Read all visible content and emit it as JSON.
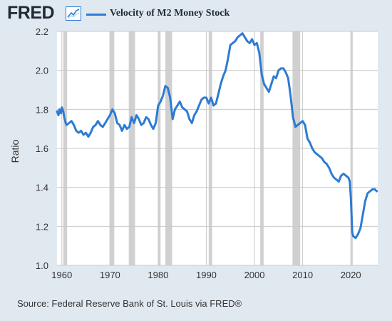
{
  "header": {
    "logo_text": "FRED",
    "logo_icon": "fred-line-graph-icon"
  },
  "colors": {
    "background": "#e1e9f0",
    "plot_background": "#ffffff",
    "series": "#2d7bd3",
    "recession": "#d0d0d0",
    "grid": "#c9c9c9"
  },
  "footer": {
    "source": "Source: Federal Reserve Bank of St. Louis via FRED®"
  },
  "chart_data": {
    "type": "line",
    "title": "",
    "xlabel": "",
    "ylabel": "Ratio",
    "xlim": [
      1959.0,
      2025.6
    ],
    "ylim": [
      1.0,
      2.2
    ],
    "x_ticks": [
      1960,
      1970,
      1980,
      1990,
      2000,
      2010,
      2020
    ],
    "y_ticks": [
      1.0,
      1.2,
      1.4,
      1.6,
      1.8,
      2.0,
      2.2
    ],
    "y_tick_labels": [
      "1.0",
      "1.2",
      "1.4",
      "1.6",
      "1.8",
      "2.0",
      "2.2"
    ],
    "grid": true,
    "legend": "top-left",
    "recessions": [
      [
        1960.3,
        1961.1
      ],
      [
        1969.9,
        1970.9
      ],
      [
        1973.9,
        1975.2
      ],
      [
        1980.0,
        1980.5
      ],
      [
        1981.5,
        1982.9
      ],
      [
        1990.5,
        1991.2
      ],
      [
        2001.2,
        2001.9
      ],
      [
        2007.9,
        2009.5
      ],
      [
        2020.1,
        2020.3
      ]
    ],
    "series": [
      {
        "name": "Velocity of M2 Money Stock",
        "x": [
          1959.0,
          1959.3,
          1959.5,
          1959.8,
          1960.0,
          1960.3,
          1960.5,
          1960.8,
          1961.0,
          1961.5,
          1962.0,
          1962.5,
          1963.0,
          1963.5,
          1964.0,
          1964.5,
          1965.0,
          1965.5,
          1966.0,
          1966.5,
          1967.0,
          1967.5,
          1968.0,
          1968.5,
          1969.0,
          1969.5,
          1970.0,
          1970.5,
          1971.0,
          1971.5,
          1972.0,
          1972.5,
          1973.0,
          1973.5,
          1974.0,
          1974.5,
          1975.0,
          1975.5,
          1976.0,
          1976.5,
          1977.0,
          1977.5,
          1978.0,
          1978.5,
          1979.0,
          1979.5,
          1980.0,
          1980.5,
          1981.0,
          1981.5,
          1982.0,
          1982.5,
          1983.0,
          1983.5,
          1984.0,
          1984.5,
          1985.0,
          1985.5,
          1986.0,
          1986.5,
          1987.0,
          1987.5,
          1988.0,
          1988.5,
          1989.0,
          1989.5,
          1990.0,
          1990.5,
          1991.0,
          1991.5,
          1992.0,
          1992.5,
          1993.0,
          1993.5,
          1994.0,
          1994.5,
          1995.0,
          1995.5,
          1996.0,
          1996.5,
          1997.0,
          1997.5,
          1998.0,
          1998.5,
          1999.0,
          1999.5,
          2000.0,
          2000.5,
          2001.0,
          2001.5,
          2002.0,
          2002.5,
          2003.0,
          2003.5,
          2004.0,
          2004.5,
          2005.0,
          2005.5,
          2006.0,
          2006.5,
          2007.0,
          2007.5,
          2008.0,
          2008.5,
          2009.0,
          2009.5,
          2010.0,
          2010.5,
          2011.0,
          2011.5,
          2012.0,
          2012.5,
          2013.0,
          2013.5,
          2014.0,
          2014.5,
          2015.0,
          2015.5,
          2016.0,
          2016.5,
          2017.0,
          2017.5,
          2018.0,
          2018.5,
          2019.0,
          2019.5,
          2019.8,
          2020.0,
          2020.3,
          2020.5,
          2021.0,
          2021.5,
          2022.0,
          2022.5,
          2023.0,
          2023.5,
          2024.0,
          2024.5,
          2025.0,
          2025.4
        ],
        "values": [
          1.79,
          1.77,
          1.8,
          1.78,
          1.81,
          1.79,
          1.76,
          1.73,
          1.72,
          1.73,
          1.74,
          1.72,
          1.69,
          1.68,
          1.69,
          1.67,
          1.68,
          1.66,
          1.68,
          1.71,
          1.72,
          1.74,
          1.72,
          1.71,
          1.73,
          1.75,
          1.77,
          1.8,
          1.78,
          1.73,
          1.72,
          1.69,
          1.72,
          1.7,
          1.71,
          1.76,
          1.73,
          1.77,
          1.75,
          1.72,
          1.73,
          1.76,
          1.75,
          1.72,
          1.7,
          1.73,
          1.82,
          1.84,
          1.87,
          1.92,
          1.91,
          1.86,
          1.75,
          1.8,
          1.82,
          1.84,
          1.81,
          1.8,
          1.79,
          1.75,
          1.73,
          1.77,
          1.79,
          1.82,
          1.85,
          1.86,
          1.86,
          1.83,
          1.86,
          1.82,
          1.83,
          1.88,
          1.93,
          1.97,
          2.0,
          2.06,
          2.13,
          2.14,
          2.15,
          2.17,
          2.18,
          2.19,
          2.17,
          2.15,
          2.14,
          2.16,
          2.13,
          2.14,
          2.09,
          1.98,
          1.93,
          1.91,
          1.89,
          1.93,
          1.97,
          1.96,
          2.0,
          2.01,
          2.01,
          1.99,
          1.96,
          1.87,
          1.76,
          1.71,
          1.72,
          1.73,
          1.74,
          1.72,
          1.65,
          1.63,
          1.6,
          1.58,
          1.57,
          1.56,
          1.55,
          1.53,
          1.52,
          1.5,
          1.47,
          1.45,
          1.44,
          1.43,
          1.46,
          1.47,
          1.46,
          1.45,
          1.43,
          1.35,
          1.17,
          1.15,
          1.14,
          1.16,
          1.19,
          1.26,
          1.33,
          1.37,
          1.38,
          1.39,
          1.39,
          1.38
        ]
      }
    ]
  }
}
